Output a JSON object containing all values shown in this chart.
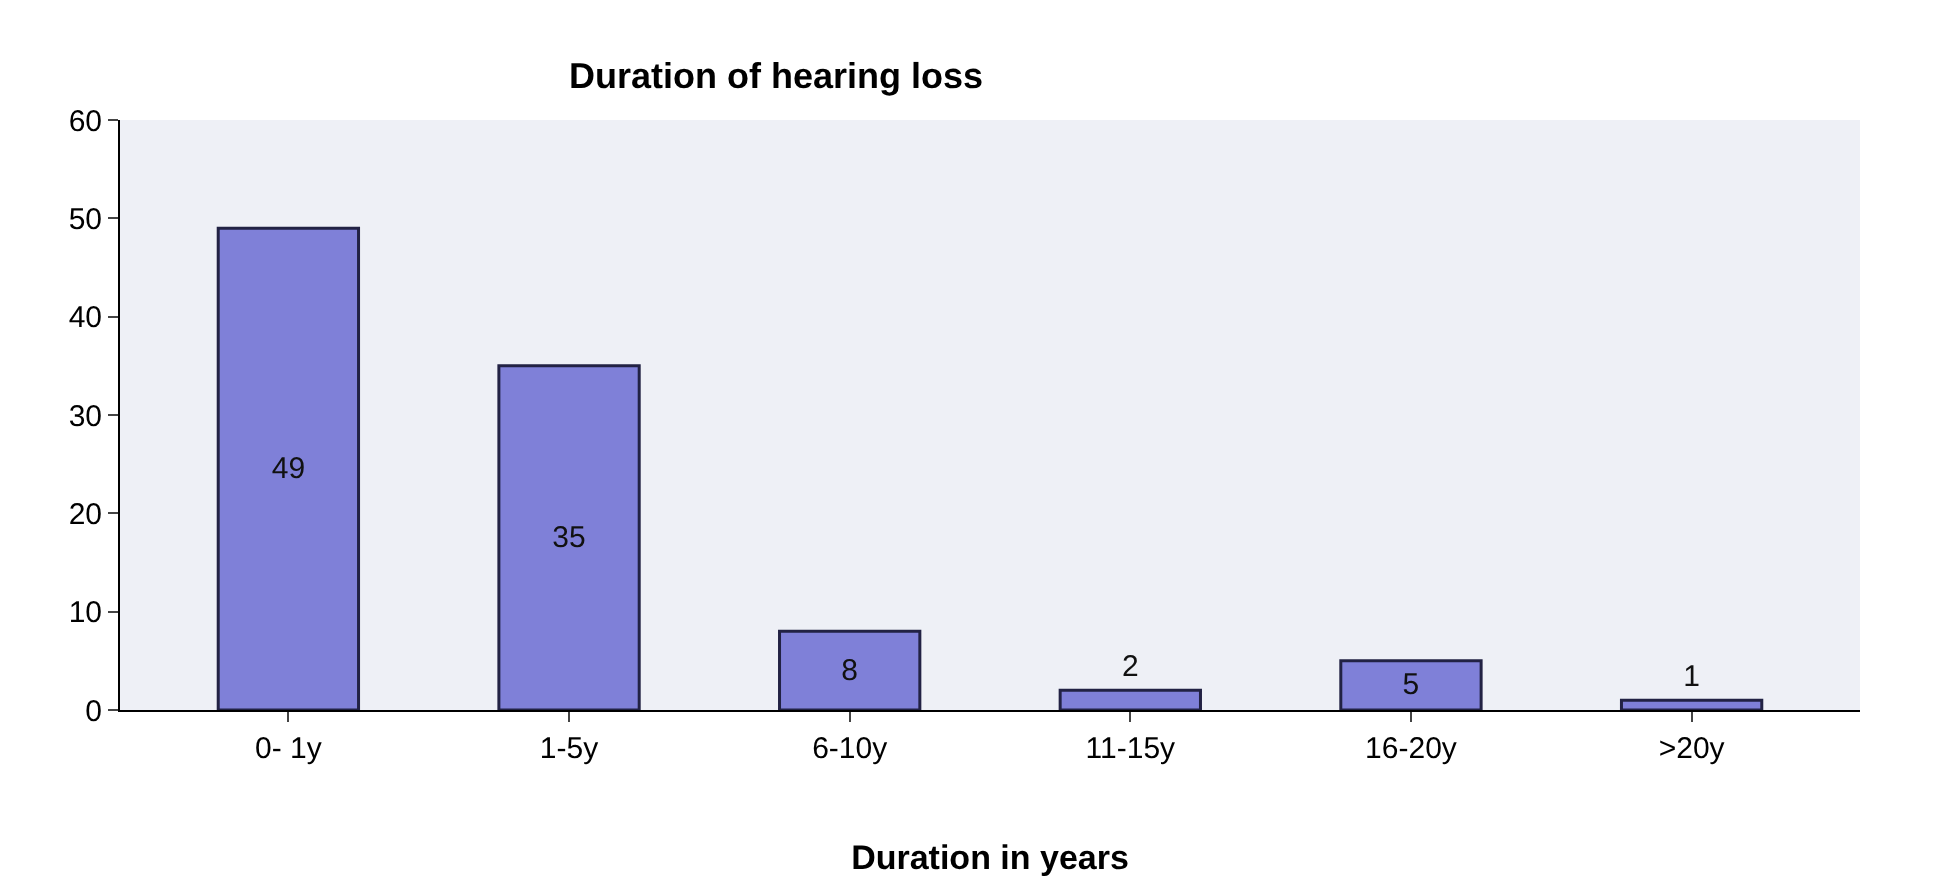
{
  "chart_data": {
    "type": "bar",
    "title": "Duration of hearing loss",
    "xlabel": "Duration in years",
    "categories": [
      "0- 1y",
      "1-5y",
      "6-10y",
      "11-15y",
      "16-20y",
      ">20y"
    ],
    "values": [
      49,
      35,
      8,
      2,
      5,
      1
    ],
    "color": "#7f80d8",
    "ylim": [
      0,
      60
    ],
    "yticks": [
      0,
      10,
      20,
      30,
      40,
      50,
      60
    ],
    "grid": false,
    "data_labels": true
  }
}
